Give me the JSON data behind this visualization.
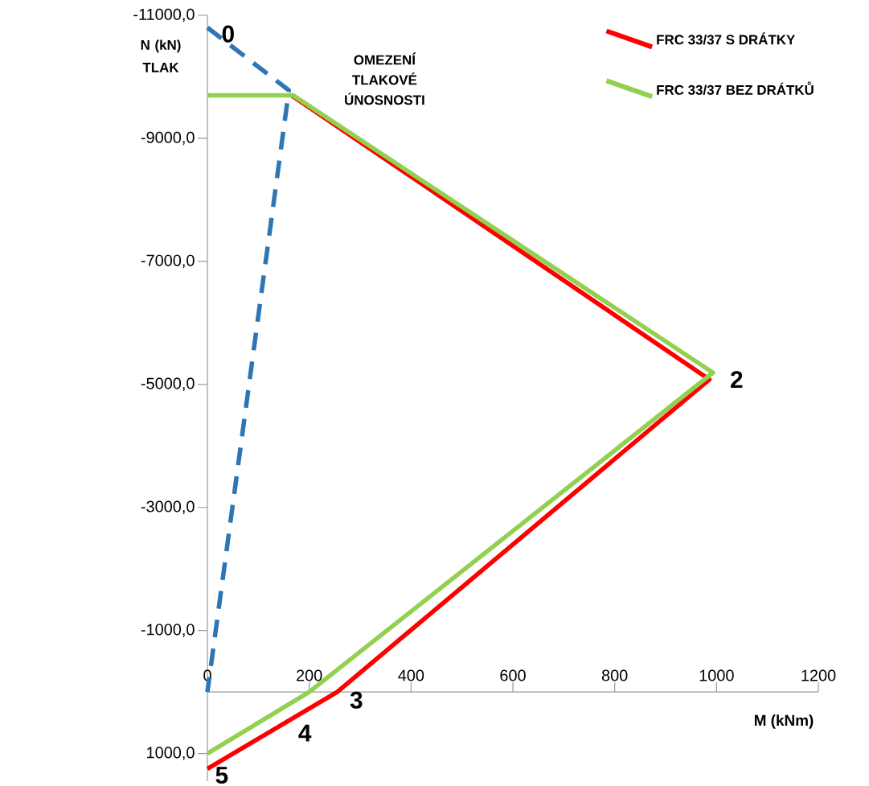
{
  "chart_data": {
    "type": "line",
    "xlabel": "M (kNm)",
    "ylabel": "N (kN) TLAK",
    "xlim": [
      0,
      1200
    ],
    "xticks": [
      0,
      200,
      400,
      600,
      800,
      1000,
      1200
    ],
    "ylim": [
      1450,
      -11000
    ],
    "yticks": [
      {
        "value": -11000,
        "label": "-11000,0"
      },
      {
        "value": -9000,
        "label": "-9000,0"
      },
      {
        "value": -7000,
        "label": "-7000,0"
      },
      {
        "value": -5000,
        "label": "-5000,0"
      },
      {
        "value": -3000,
        "label": "-3000,0"
      },
      {
        "value": -1000,
        "label": "-1000,0"
      },
      {
        "value": 1000,
        "label": "1000,0"
      }
    ],
    "series": [
      {
        "color": "#2e75b6",
        "line_style": "dashed",
        "x": [
          0,
          160,
          0
        ],
        "values": [
          -10800,
          -9780,
          0
        ]
      },
      {
        "name": "FRC 33/37 S DRÁTKY",
        "color": "#ff0000",
        "x": [
          0,
          255,
          986,
          165
        ],
        "values": [
          1250,
          0,
          -5080,
          -9700
        ]
      },
      {
        "name": "FRC 33/37 BEZ DRÁTKŮ",
        "color": "#92d050",
        "x": [
          0,
          200,
          993,
          168,
          0
        ],
        "values": [
          1000,
          0,
          -5190,
          -9700,
          -9700
        ]
      }
    ],
    "annotations": [
      "OMEZENÍ TLAKOVÉ ÚNOSNOSTI",
      {
        "text": "0",
        "x": 0,
        "y": -10800
      },
      {
        "text": "2",
        "x": 986,
        "y": -5080
      },
      {
        "text": "3",
        "x": 255,
        "y": 0
      },
      {
        "text": "4",
        "x": 160,
        "y": 460
      },
      {
        "text": "5",
        "x": 0,
        "y": 1250
      }
    ],
    "legend": "top right",
    "grid": false,
    "marker": "none",
    "line_style": "solid"
  }
}
